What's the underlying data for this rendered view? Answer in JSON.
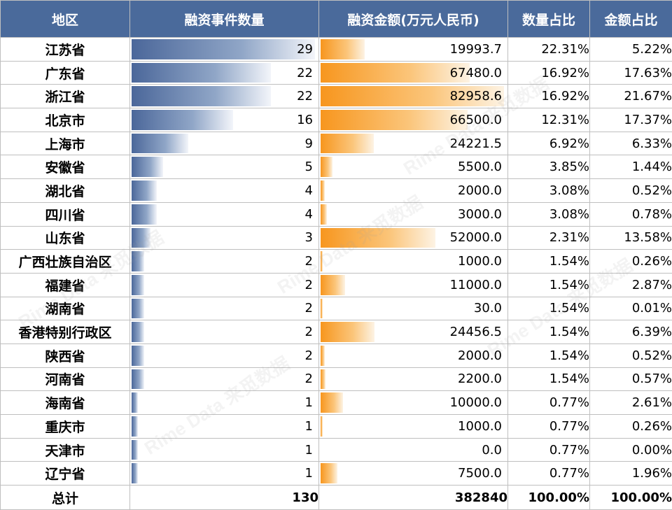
{
  "table": {
    "headers": {
      "region": "地区",
      "count": "融资事件数量",
      "amount": "融资金额(万元人民币)",
      "count_share": "数量占比",
      "amount_share": "金额占比"
    },
    "rows": [
      {
        "region": "江苏省",
        "count": "29",
        "amount": "19993.7",
        "count_share": "22.31%",
        "amount_share": "5.22%"
      },
      {
        "region": "广东省",
        "count": "22",
        "amount": "67480.0",
        "count_share": "16.92%",
        "amount_share": "17.63%"
      },
      {
        "region": "浙江省",
        "count": "22",
        "amount": "82958.6",
        "count_share": "16.92%",
        "amount_share": "21.67%"
      },
      {
        "region": "北京市",
        "count": "16",
        "amount": "66500.0",
        "count_share": "12.31%",
        "amount_share": "17.37%"
      },
      {
        "region": "上海市",
        "count": "9",
        "amount": "24221.5",
        "count_share": "6.92%",
        "amount_share": "6.33%"
      },
      {
        "region": "安徽省",
        "count": "5",
        "amount": "5500.0",
        "count_share": "3.85%",
        "amount_share": "1.44%"
      },
      {
        "region": "湖北省",
        "count": "4",
        "amount": "2000.0",
        "count_share": "3.08%",
        "amount_share": "0.52%"
      },
      {
        "region": "四川省",
        "count": "4",
        "amount": "3000.0",
        "count_share": "3.08%",
        "amount_share": "0.78%"
      },
      {
        "region": "山东省",
        "count": "3",
        "amount": "52000.0",
        "count_share": "2.31%",
        "amount_share": "13.58%"
      },
      {
        "region": "广西壮族自治区",
        "count": "2",
        "amount": "1000.0",
        "count_share": "1.54%",
        "amount_share": "0.26%"
      },
      {
        "region": "福建省",
        "count": "2",
        "amount": "11000.0",
        "count_share": "1.54%",
        "amount_share": "2.87%"
      },
      {
        "region": "湖南省",
        "count": "2",
        "amount": "30.0",
        "count_share": "1.54%",
        "amount_share": "0.01%"
      },
      {
        "region": "香港特别行政区",
        "count": "2",
        "amount": "24456.5",
        "count_share": "1.54%",
        "amount_share": "6.39%"
      },
      {
        "region": "陕西省",
        "count": "2",
        "amount": "2000.0",
        "count_share": "1.54%",
        "amount_share": "0.52%"
      },
      {
        "region": "河南省",
        "count": "2",
        "amount": "2200.0",
        "count_share": "1.54%",
        "amount_share": "0.57%"
      },
      {
        "region": "海南省",
        "count": "1",
        "amount": "10000.0",
        "count_share": "0.77%",
        "amount_share": "2.61%"
      },
      {
        "region": "重庆市",
        "count": "1",
        "amount": "1000.0",
        "count_share": "0.77%",
        "amount_share": "0.26%"
      },
      {
        "region": "天津市",
        "count": "1",
        "amount": "0.0",
        "count_share": "0.77%",
        "amount_share": "0.00%"
      },
      {
        "region": "辽宁省",
        "count": "1",
        "amount": "7500.0",
        "count_share": "0.77%",
        "amount_share": "1.96%"
      }
    ],
    "total": {
      "region": "总计",
      "count": "130",
      "amount": "382840",
      "count_share": "100.00%",
      "amount_share": "100.00%"
    },
    "count_bar_max": 29,
    "amount_bar_max": 82958.6
  },
  "colors": {
    "header_bg": "#4a6a9b",
    "count_bar": "#4b679a",
    "amount_bar": "#f7961e"
  },
  "watermark": "Rime Data 来觅数据"
}
